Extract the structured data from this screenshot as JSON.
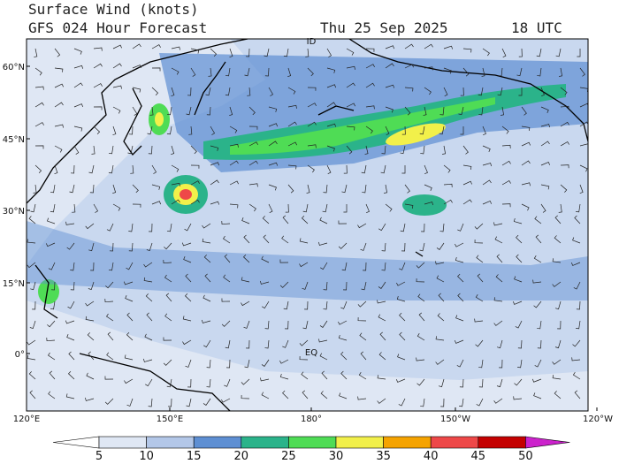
{
  "header": {
    "title": "Surface Wind (knots)",
    "subtitle": "GFS 024 Hour Forecast",
    "date": "Thu 25 Sep 2025",
    "time": "18 UTC"
  },
  "map": {
    "lat_labels": [
      "60°N",
      "45°N",
      "30°N",
      "15°N",
      "0°"
    ],
    "lon_labels": [
      "120°E",
      "150°E",
      "180°",
      "150°W",
      "120°W"
    ],
    "place_labels": [
      "ID",
      "EQ"
    ]
  },
  "colorbar": {
    "ticks": [
      5,
      10,
      15,
      20,
      25,
      30,
      35,
      40,
      45,
      50
    ],
    "colors": [
      "#ffffff",
      "#dfe7f4",
      "#b3c7e8",
      "#5e8fd3",
      "#2bb38a",
      "#4fdc55",
      "#f2f04a",
      "#f5a300",
      "#ee4848",
      "#c40000",
      "#cc22cc"
    ]
  }
}
